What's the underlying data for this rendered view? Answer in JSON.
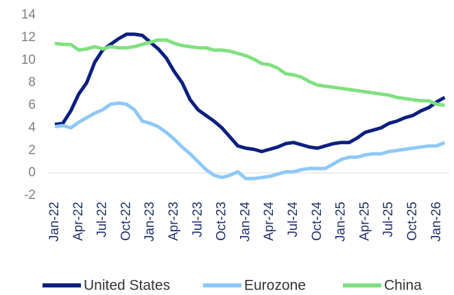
{
  "chart_data": {
    "type": "line",
    "categories": [
      "Jan-22",
      null,
      null,
      "Apr-22",
      null,
      null,
      "Jul-22",
      null,
      null,
      "Oct-22",
      null,
      null,
      "Jan-23",
      null,
      null,
      "Apr-23",
      null,
      null,
      "Jul-23",
      null,
      null,
      "Oct-23",
      null,
      null,
      "Jan-24",
      null,
      null,
      "Apr-24",
      null,
      null,
      "Jul-24",
      null,
      null,
      "Oct-24",
      null,
      null,
      "Jan-25",
      null,
      null,
      "Apr-25",
      null,
      null,
      "Jul-25",
      null,
      null,
      "Oct-25",
      null,
      null,
      "Jan-26",
      null
    ],
    "series": [
      {
        "name": "United States",
        "color": "#0b1f80",
        "values": [
          4.3,
          4.4,
          5.5,
          7.0,
          8.0,
          9.8,
          10.9,
          11.4,
          11.9,
          12.3,
          12.3,
          12.2,
          11.6,
          11.0,
          10.2,
          9.0,
          8.0,
          6.5,
          5.6,
          5.1,
          4.6,
          4.0,
          3.2,
          2.4,
          2.2,
          2.1,
          1.9,
          2.1,
          2.3,
          2.6,
          2.7,
          2.5,
          2.3,
          2.2,
          2.4,
          2.6,
          2.7,
          2.7,
          3.1,
          3.6,
          3.8,
          4.0,
          4.4,
          4.6,
          4.9,
          5.1,
          5.5,
          5.8,
          6.3,
          6.7
        ]
      },
      {
        "name": "Eurozone",
        "color": "#8ec8f7",
        "values": [
          4.1,
          4.2,
          4.0,
          4.5,
          4.9,
          5.3,
          5.6,
          6.1,
          6.2,
          6.1,
          5.6,
          4.6,
          4.4,
          4.1,
          3.6,
          3.0,
          2.3,
          1.7,
          1.0,
          0.3,
          -0.2,
          -0.4,
          -0.2,
          0.1,
          -0.5,
          -0.5,
          -0.4,
          -0.3,
          -0.1,
          0.1,
          0.1,
          0.3,
          0.4,
          0.4,
          0.4,
          0.8,
          1.2,
          1.4,
          1.4,
          1.6,
          1.7,
          1.7,
          1.9,
          2.0,
          2.1,
          2.2,
          2.3,
          2.4,
          2.4,
          2.7
        ]
      },
      {
        "name": "China",
        "color": "#80e080",
        "values": [
          11.5,
          11.4,
          11.4,
          10.9,
          11.0,
          11.2,
          11.0,
          11.2,
          11.1,
          11.1,
          11.2,
          11.4,
          11.6,
          11.8,
          11.8,
          11.5,
          11.3,
          11.2,
          11.1,
          11.1,
          10.9,
          10.9,
          10.8,
          10.6,
          10.4,
          10.1,
          9.7,
          9.6,
          9.3,
          8.8,
          8.7,
          8.5,
          8.1,
          7.8,
          7.7,
          7.6,
          7.5,
          7.4,
          7.3,
          7.2,
          7.1,
          7.0,
          6.9,
          6.7,
          6.6,
          6.5,
          6.4,
          6.4,
          6.1,
          6.0
        ]
      }
    ],
    "ylim": [
      -2,
      14
    ],
    "yticks": [
      -2,
      0,
      2,
      4,
      6,
      8,
      10,
      12,
      14
    ],
    "grid": false,
    "legend": "bottom"
  }
}
